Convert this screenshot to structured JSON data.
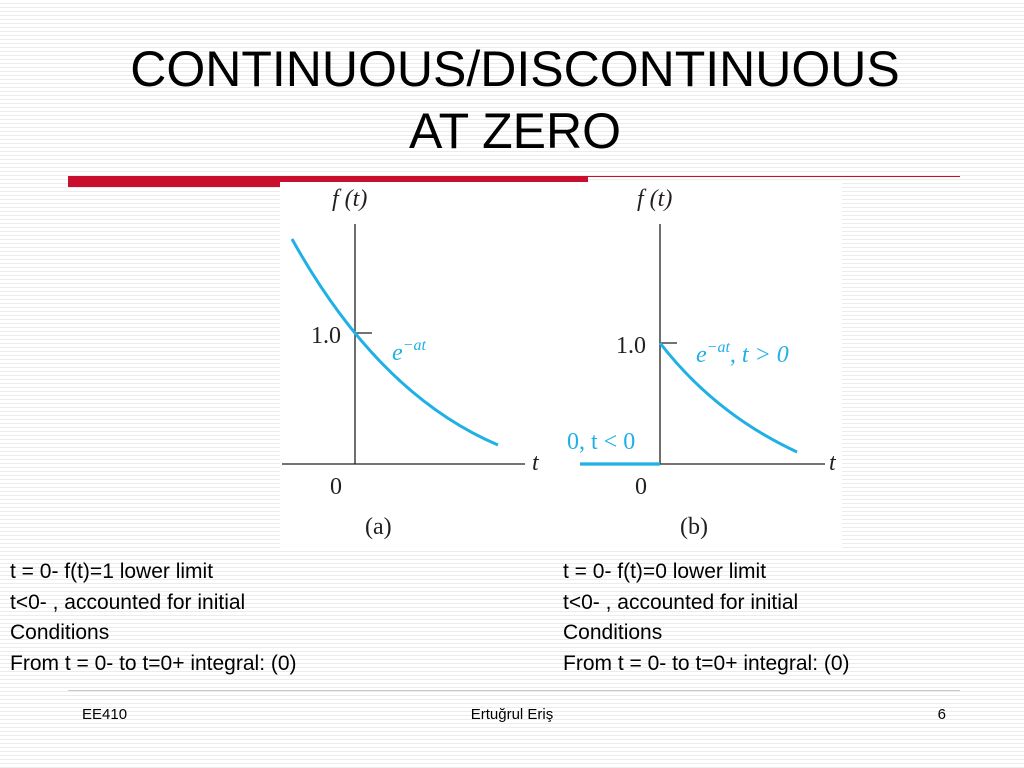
{
  "slide": {
    "title_line1": "CONTINUOUS/DISCONTINUOUS",
    "title_line2": "AT ZERO",
    "accent_color": "#c8102e"
  },
  "figure": {
    "curve_color": "#1fb0e5",
    "axis_color": "#231f20",
    "panel_a": {
      "y_axis_label": "f (t)",
      "x_axis_label": "t",
      "origin_label": "0",
      "tick_label": "1.0",
      "curve_label_base": "e",
      "curve_label_exp": "−at",
      "caption": "(a)"
    },
    "panel_b": {
      "y_axis_label": "f (t)",
      "x_axis_label": "t",
      "origin_label": "0",
      "tick_label": "1.0",
      "curve_label_base": "e",
      "curve_label_exp": "−at",
      "curve_label_suffix": ", t > 0",
      "zero_label": "0, t < 0",
      "caption": "(b)"
    }
  },
  "captions": {
    "left": [
      "t = 0-  f(t)=1 lower limit",
      "t<0- , accounted for initial",
      "Conditions",
      "From t = 0- to t=0+ integral: (0)"
    ],
    "right": [
      "t = 0-  f(t)=0 lower limit",
      "t<0- , accounted for initial",
      "Conditions",
      "From t = 0- to t=0+ integral: (0)"
    ]
  },
  "footer": {
    "course": "EE410",
    "author": "Ertuğrul Eriş",
    "page_number": "6"
  }
}
